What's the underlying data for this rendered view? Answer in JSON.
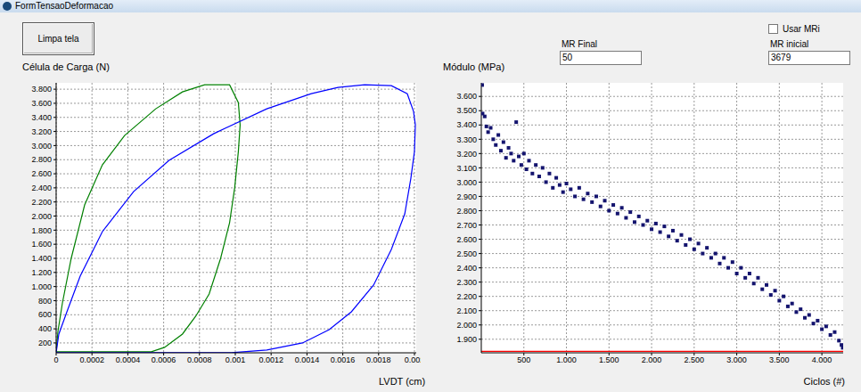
{
  "window": {
    "title": "FormTensaoDeformacao"
  },
  "controls": {
    "button": "Limpa tela",
    "checkbox": {
      "label": "Usar MRi",
      "checked": false
    },
    "mr_final": {
      "label": "MR Final",
      "value": 50
    },
    "mr_inicial": {
      "label": "MR inicial",
      "value": 3679
    }
  },
  "chart_data": [
    {
      "type": "line",
      "y_label": "Célula de Carga (N)",
      "x_label": "LVDT (cm)",
      "grid": true,
      "xlim": [
        0,
        0.00201
      ],
      "xticks": [
        0,
        0.0002,
        0.0004,
        0.0006,
        0.0008,
        0.001,
        0.0012,
        0.0014,
        0.0016,
        0.0018,
        0.002
      ],
      "ylim": [
        60,
        3890
      ],
      "yticks": [
        200,
        400,
        600,
        800,
        {
          "value": 1000,
          "label": "1.000"
        },
        {
          "value": 1200,
          "label": "1.200"
        },
        {
          "value": 1400,
          "label": "1.400"
        },
        {
          "value": 1600,
          "label": "1.600"
        },
        {
          "value": 1800,
          "label": "1.800"
        },
        {
          "value": 2000,
          "label": "2.000"
        },
        {
          "value": 2200,
          "label": "2.200"
        },
        {
          "value": 2400,
          "label": "2.400"
        },
        {
          "value": 2600,
          "label": "2.600"
        },
        {
          "value": 2800,
          "label": "2.800"
        },
        {
          "value": 3000,
          "label": "3.000"
        },
        {
          "value": 3200,
          "label": "3.200"
        },
        {
          "value": 3400,
          "label": "3.400"
        },
        {
          "value": 3600,
          "label": "3.600"
        },
        {
          "value": 3800,
          "label": "3.800"
        }
      ],
      "series": [
        {
          "color": "#008000",
          "line_style": "solid",
          "x": [
            0,
            1e-05,
            3.5e-05,
            8.4e-05,
            0.000159,
            0.000258,
            0.000382,
            0.000556,
            0.000705,
            0.000829,
            0.000968,
            0.001017,
            0.001027,
            0.001017,
            0.000997,
            0.000968,
            0.000918,
            0.000854,
            0.000779,
            0.000705,
            0.000605,
            0.000531,
            0
          ],
          "values": [
            74,
            364,
            768,
            1400,
            2158,
            2726,
            3143,
            3522,
            3762,
            3863,
            3863,
            3610,
            3294,
            2915,
            2410,
            1905,
            1400,
            895,
            579,
            326,
            137,
            74,
            74
          ]
        },
        {
          "color": "#0000ff",
          "line_style": "solid",
          "x": [
            0,
            1.5e-05,
            6e-05,
            0.000134,
            0.000258,
            0.000432,
            0.00063,
            0.000879,
            0.001176,
            0.001424,
            0.001573,
            0.001722,
            0.001871,
            0.00196,
            0.001995,
            0.002005,
            0.002,
            0.00198,
            0.001946,
            0.001871,
            0.001772,
            0.001648,
            0.001524,
            0.001375,
            0.001176,
            0.000978,
            0
          ],
          "values": [
            61,
            326,
            642,
            1147,
            1779,
            2347,
            2789,
            3168,
            3522,
            3736,
            3825,
            3863,
            3850,
            3736,
            3484,
            3294,
            2915,
            2537,
            2031,
            1526,
            1021,
            642,
            389,
            200,
            99,
            61,
            61
          ]
        }
      ]
    },
    {
      "type": "scatter",
      "y_label": "Módulo (MPa)",
      "x_label": "Ciclos (#)",
      "grid": true,
      "xlim": [
        0,
        4250
      ],
      "xticks": [
        500,
        {
          "value": 1000,
          "label": "1.000"
        },
        {
          "value": 1500,
          "label": "1.500"
        },
        {
          "value": 2000,
          "label": "2.000"
        },
        {
          "value": 2500,
          "label": "2.500"
        },
        {
          "value": 3000,
          "label": "3.000"
        },
        {
          "value": 3500,
          "label": "3.500"
        },
        {
          "value": 4000,
          "label": "4.000"
        }
      ],
      "ylim": [
        1805,
        3695
      ],
      "yticks": [
        {
          "value": 1900,
          "label": "1.900"
        },
        {
          "value": 2000,
          "label": "2.000"
        },
        {
          "value": 2100,
          "label": "2.100"
        },
        {
          "value": 2200,
          "label": "2.200"
        },
        {
          "value": 2300,
          "label": "2.300"
        },
        {
          "value": 2400,
          "label": "2.400"
        },
        {
          "value": 2500,
          "label": "2.500"
        },
        {
          "value": 2600,
          "label": "2.600"
        },
        {
          "value": 2700,
          "label": "2.700"
        },
        {
          "value": 2800,
          "label": "2.800"
        },
        {
          "value": 2900,
          "label": "2.900"
        },
        {
          "value": 3000,
          "label": "3.000"
        },
        {
          "value": 3100,
          "label": "3.100"
        },
        {
          "value": 3200,
          "label": "3.200"
        },
        {
          "value": 3300,
          "label": "3.300"
        },
        {
          "value": 3400,
          "label": "3.400"
        },
        {
          "value": 3500,
          "label": "3.500"
        },
        {
          "value": 3600,
          "label": "3.600"
        }
      ],
      "series": [
        {
          "type": "scatter",
          "color": "#14146e",
          "marker": "square",
          "x": [
            10,
            15,
            40,
            60,
            80,
            110,
            140,
            170,
            200,
            230,
            260,
            290,
            320,
            350,
            380,
            410,
            440,
            470,
            500,
            530,
            560,
            600,
            640,
            680,
            720,
            760,
            800,
            840,
            880,
            920,
            960,
            1000,
            1050,
            1100,
            1150,
            1200,
            1250,
            1300,
            1350,
            1400,
            1450,
            1500,
            1550,
            1600,
            1650,
            1700,
            1750,
            1800,
            1850,
            1900,
            1950,
            2000,
            2050,
            2100,
            2150,
            2200,
            2250,
            2300,
            2350,
            2400,
            2450,
            2500,
            2550,
            2600,
            2650,
            2700,
            2750,
            2800,
            2850,
            2900,
            2950,
            3000,
            3050,
            3100,
            3150,
            3200,
            3250,
            3300,
            3350,
            3400,
            3450,
            3500,
            3550,
            3600,
            3650,
            3700,
            3750,
            3800,
            3850,
            3900,
            3950,
            4000,
            4050,
            4100,
            4150,
            4200,
            4230,
            4245
          ],
          "values": [
            3680,
            3480,
            3460,
            3390,
            3350,
            3380,
            3300,
            3260,
            3330,
            3220,
            3280,
            3170,
            3240,
            3200,
            3150,
            3420,
            3180,
            3120,
            3200,
            3090,
            3150,
            3060,
            3120,
            3040,
            3100,
            3000,
            3060,
            2960,
            3030,
            2980,
            2930,
            2990,
            2950,
            2900,
            2960,
            2880,
            2920,
            2860,
            2900,
            2830,
            2870,
            2800,
            2840,
            2780,
            2820,
            2750,
            2790,
            2720,
            2760,
            2700,
            2730,
            2670,
            2710,
            2650,
            2690,
            2620,
            2660,
            2590,
            2630,
            2560,
            2600,
            2530,
            2570,
            2500,
            2540,
            2470,
            2500,
            2430,
            2470,
            2400,
            2440,
            2360,
            2400,
            2330,
            2360,
            2290,
            2330,
            2250,
            2280,
            2210,
            2240,
            2170,
            2200,
            2130,
            2150,
            2090,
            2110,
            2050,
            2070,
            2010,
            2030,
            1970,
            1990,
            1930,
            1950,
            1890,
            1860,
            1840
          ]
        },
        {
          "type": "line",
          "color": "#ff0000",
          "line_style": "solid",
          "x": [
            0,
            4250
          ],
          "values": [
            1815,
            1815
          ]
        }
      ]
    }
  ]
}
